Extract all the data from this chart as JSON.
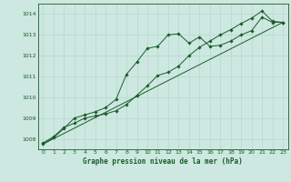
{
  "title": "Graphe pression niveau de la mer (hPa)",
  "background_color": "#cce8e0",
  "grid_color": "#aaccC4",
  "line_color": "#1a5c2a",
  "xlim": [
    -0.5,
    23.5
  ],
  "ylim": [
    1007.5,
    1014.5
  ],
  "yticks": [
    1008,
    1009,
    1010,
    1011,
    1012,
    1013,
    1014
  ],
  "xticks": [
    0,
    1,
    2,
    3,
    4,
    5,
    6,
    7,
    8,
    9,
    10,
    11,
    12,
    13,
    14,
    15,
    16,
    17,
    18,
    19,
    20,
    21,
    22,
    23
  ],
  "series1_x": [
    0,
    1,
    2,
    3,
    4,
    5,
    6,
    7,
    8,
    9,
    10,
    11,
    12,
    13,
    14,
    15,
    16,
    17,
    18,
    19,
    20,
    21,
    22,
    23
  ],
  "series1_y": [
    1007.8,
    1008.1,
    1008.55,
    1008.75,
    1009.0,
    1009.1,
    1009.2,
    1009.35,
    1009.65,
    1010.1,
    1010.55,
    1011.05,
    1011.2,
    1011.5,
    1012.0,
    1012.4,
    1012.7,
    1013.0,
    1013.25,
    1013.55,
    1013.8,
    1014.15,
    1013.65,
    1013.6
  ],
  "series2_x": [
    0,
    1,
    2,
    3,
    4,
    5,
    6,
    7,
    8,
    9,
    10,
    11,
    12,
    13,
    14,
    15,
    16,
    17,
    18,
    19,
    20,
    21,
    22,
    23
  ],
  "series2_y": [
    1007.75,
    1008.05,
    1008.5,
    1009.0,
    1009.15,
    1009.3,
    1009.5,
    1009.9,
    1011.1,
    1011.7,
    1012.35,
    1012.45,
    1013.0,
    1013.05,
    1012.6,
    1012.9,
    1012.45,
    1012.5,
    1012.7,
    1013.0,
    1013.2,
    1013.85,
    1013.6,
    1013.6
  ],
  "trend_x": [
    0,
    23
  ],
  "trend_y": [
    1007.75,
    1013.6
  ]
}
